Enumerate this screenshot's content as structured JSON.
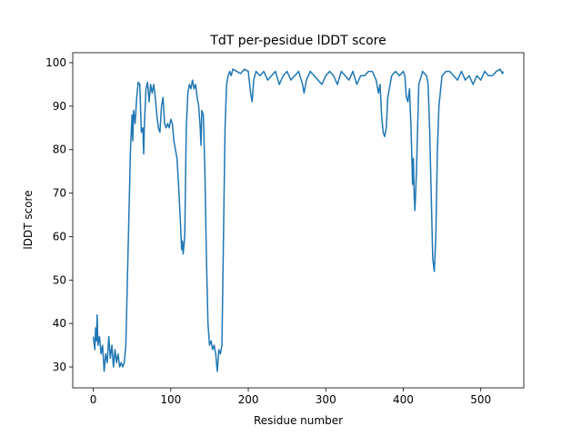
{
  "chart_data": {
    "type": "line",
    "title": "TdT per-pesidue lDDT score",
    "x_label": "Residue number",
    "y_label": "lDDT score",
    "series": [
      {
        "color": "#1f77b4",
        "x": [
          0,
          2,
          3,
          4,
          5,
          6,
          8,
          10,
          12,
          14,
          16,
          18,
          20,
          22,
          24,
          26,
          28,
          30,
          32,
          34,
          36,
          38,
          40,
          42,
          44,
          46,
          48,
          50,
          51,
          52,
          54,
          56,
          58,
          60,
          62,
          64,
          65,
          66,
          68,
          70,
          72,
          74,
          76,
          78,
          80,
          82,
          84,
          86,
          88,
          90,
          92,
          94,
          96,
          98,
          100,
          102,
          104,
          106,
          108,
          110,
          112,
          114,
          115,
          116,
          118,
          120,
          122,
          124,
          126,
          128,
          130,
          132,
          134,
          136,
          138,
          139,
          140,
          142,
          144,
          146,
          148,
          150,
          152,
          154,
          156,
          158,
          160,
          162,
          164,
          166,
          168,
          170,
          172,
          174,
          176,
          178,
          180,
          185,
          190,
          195,
          200,
          203,
          205,
          207,
          210,
          215,
          220,
          225,
          230,
          235,
          240,
          245,
          250,
          255,
          260,
          265,
          270,
          272,
          275,
          280,
          285,
          290,
          295,
          300,
          305,
          310,
          315,
          320,
          325,
          330,
          335,
          340,
          345,
          350,
          355,
          360,
          365,
          368,
          370,
          372,
          374,
          376,
          378,
          380,
          385,
          390,
          395,
          400,
          402,
          404,
          406,
          408,
          410,
          412,
          413,
          414,
          415,
          417,
          420,
          425,
          430,
          432,
          434,
          436,
          438,
          440,
          442,
          444,
          446,
          450,
          455,
          460,
          465,
          470,
          475,
          480,
          485,
          490,
          495,
          500,
          505,
          510,
          515,
          520,
          525,
          528,
          529
        ],
        "values": [
          37,
          34,
          39,
          36,
          42,
          35,
          37,
          33,
          35,
          29,
          33,
          31,
          37,
          32,
          35,
          30,
          34,
          31,
          33,
          30,
          31,
          30,
          31,
          35,
          50,
          65,
          80,
          88,
          82,
          89,
          86,
          92,
          95.5,
          95,
          84,
          85,
          79,
          86,
          94,
          95.5,
          91,
          95,
          93,
          95,
          92,
          88,
          85,
          84,
          90,
          92,
          86,
          85,
          86,
          85,
          87,
          86,
          82,
          80,
          78,
          72,
          65,
          57,
          59,
          56,
          60,
          85,
          93,
          95,
          94,
          96,
          94,
          95,
          92,
          90,
          85,
          81,
          89,
          88,
          75,
          55,
          40,
          35,
          36,
          34,
          35,
          33,
          29,
          34,
          33,
          35,
          60,
          85,
          95,
          97,
          98,
          97,
          98.5,
          98,
          97.5,
          98.5,
          98,
          93,
          91,
          96,
          98,
          97,
          98,
          96,
          97,
          98,
          95,
          97,
          98,
          96,
          97,
          98,
          95,
          93,
          96,
          98,
          97,
          96,
          95,
          97,
          98,
          97,
          95,
          98,
          97,
          96,
          98,
          95,
          97,
          97,
          98,
          98,
          96,
          93,
          95,
          88,
          84,
          83,
          85,
          92,
          97,
          98,
          97,
          98,
          97,
          92,
          91,
          94,
          85,
          72,
          78,
          70,
          66,
          75,
          95,
          98,
          97,
          95,
          85,
          70,
          55,
          52,
          60,
          80,
          90,
          97,
          98,
          98,
          97,
          96,
          98,
          96,
          97,
          95,
          97,
          96,
          98,
          97,
          97,
          98,
          98.5,
          97.5,
          98
        ]
      }
    ],
    "xlim": [
      -26.5,
      555.5
    ],
    "ylim": [
      25.2,
      102.3
    ],
    "xticks": [
      0,
      100,
      200,
      300,
      400,
      500
    ],
    "yticks": [
      30,
      40,
      50,
      60,
      70,
      80,
      90,
      100
    ]
  }
}
